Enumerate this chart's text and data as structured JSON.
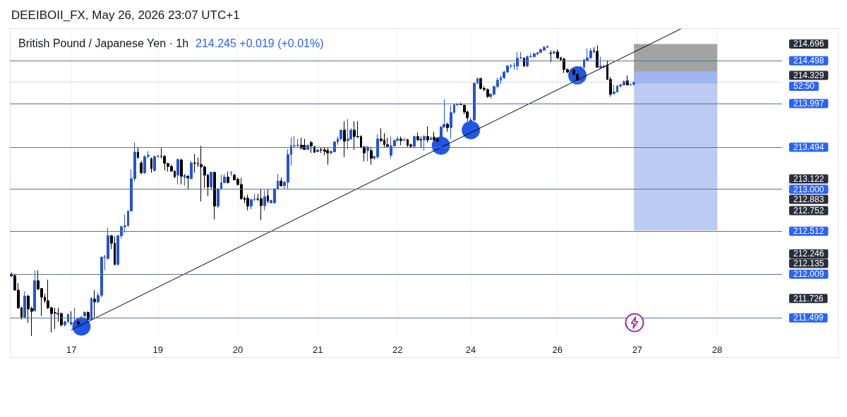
{
  "chart_data": {
    "type": "candlestick",
    "title": "British Pound / Japanese Yen · 1h",
    "subtitle": "214.245 +0.019 (+0.01%)",
    "annotations": [
      "DEEIBOII_FX, May 26, 2026 23:07 UTC+1",
      "52:50"
    ],
    "categories": [
      null,
      null,
      null,
      null,
      null,
      null,
      null,
      null,
      null,
      null,
      null,
      null,
      null,
      null,
      null,
      null,
      null,
      null,
      "17",
      null,
      null,
      null,
      null,
      null,
      null,
      null,
      null,
      null,
      null,
      null,
      null,
      null,
      null,
      null,
      null,
      null,
      null,
      null,
      null,
      null,
      null,
      null,
      null,
      null,
      "19",
      null,
      null,
      null,
      null,
      null,
      null,
      null,
      null,
      null,
      null,
      null,
      null,
      null,
      null,
      null,
      null,
      null,
      null,
      null,
      null,
      null,
      null,
      null,
      "20",
      null,
      null,
      null,
      null,
      null,
      null,
      null,
      null,
      null,
      null,
      null,
      null,
      null,
      null,
      null,
      null,
      null,
      null,
      null,
      null,
      null,
      null,
      null,
      "21",
      null,
      null,
      null,
      null,
      null,
      null,
      null,
      null,
      null,
      null,
      null,
      null,
      null,
      null,
      null,
      null,
      null,
      null,
      null,
      null,
      null,
      null,
      null,
      "22",
      null,
      null,
      null,
      null,
      null,
      null,
      null,
      null,
      null,
      null,
      null,
      null,
      null,
      null,
      null,
      null,
      null,
      null,
      null,
      null,
      null,
      "24",
      null,
      null,
      null,
      null,
      null,
      null,
      null,
      null,
      null,
      null,
      null,
      null,
      null,
      null,
      null,
      null,
      null,
      null,
      null,
      null,
      null,
      null,
      null,
      null,
      null,
      "26",
      null,
      null,
      null,
      null,
      null,
      null,
      null,
      null,
      null,
      null,
      null,
      null,
      null,
      null,
      null,
      null,
      null,
      null,
      null,
      null,
      null,
      null,
      null,
      "27",
      null,
      null,
      null,
      null,
      null,
      null,
      null,
      null,
      null,
      null,
      null,
      null,
      null,
      null,
      null,
      null,
      null,
      null,
      null,
      null,
      null,
      null,
      null,
      "28",
      null,
      null,
      null,
      null,
      null,
      null,
      null,
      null,
      null,
      null,
      null,
      null,
      null,
      null,
      null,
      null,
      null,
      null,
      null
    ],
    "ohlc": [
      [
        212.01,
        212.03,
        211.98,
        211.99
      ],
      [
        211.993,
        212.015,
        211.823,
        211.823
      ],
      [
        211.823,
        211.905,
        211.604,
        211.617
      ],
      [
        211.617,
        211.631,
        211.481,
        211.508
      ],
      [
        211.508,
        211.809,
        211.494,
        211.754
      ],
      [
        211.754,
        211.768,
        211.44,
        211.604
      ],
      [
        211.609,
        211.631,
        211.289,
        211.576
      ],
      [
        211.582,
        212.056,
        211.576,
        211.933
      ],
      [
        211.933,
        212.056,
        211.823,
        211.837
      ],
      [
        211.842,
        211.85,
        211.521,
        211.741
      ],
      [
        211.741,
        211.782,
        211.672,
        211.7
      ],
      [
        211.7,
        211.946,
        211.604,
        211.617
      ],
      [
        211.617,
        211.631,
        211.33,
        211.549
      ],
      [
        211.563,
        211.617,
        211.371,
        211.557
      ],
      [
        211.549,
        211.617,
        211.453,
        211.545
      ],
      [
        211.549,
        211.563,
        211.398,
        211.418
      ],
      [
        211.418,
        211.467,
        211.398,
        211.453
      ],
      [
        211.453,
        211.549,
        211.44,
        211.541
      ],
      [
        211.44,
        211.576,
        211.412,
        211.437
      ],
      [
        211.44,
        211.617,
        211.426,
        211.445
      ],
      [
        211.453,
        211.467,
        211.412,
        211.426
      ],
      [
        211.426,
        211.52,
        211.42,
        211.508
      ],
      [
        211.521,
        211.576,
        211.508,
        211.563
      ],
      [
        211.563,
        211.576,
        211.467,
        211.481
      ],
      [
        211.481,
        211.741,
        211.467,
        211.727
      ],
      [
        211.719,
        211.823,
        211.494,
        211.686
      ],
      [
        211.686,
        211.795,
        211.672,
        211.763
      ],
      [
        211.763,
        212.22,
        211.741,
        212.206
      ],
      [
        212.206,
        212.234,
        212.056,
        212.209
      ],
      [
        212.193,
        212.549,
        212.179,
        212.458
      ],
      [
        212.458,
        212.467,
        212.302,
        212.371
      ],
      [
        212.371,
        212.453,
        212.111,
        212.124
      ],
      [
        212.124,
        212.467,
        212.111,
        212.458
      ],
      [
        212.458,
        212.576,
        212.426,
        212.563
      ],
      [
        212.563,
        212.705,
        212.494,
        212.576
      ],
      [
        212.576,
        212.754,
        212.563,
        212.746
      ],
      [
        212.746,
        213.234,
        212.741,
        213.124
      ],
      [
        213.124,
        213.549,
        213.097,
        213.434
      ],
      [
        213.434,
        213.494,
        213.357,
        213.371
      ],
      [
        213.308,
        213.33,
        213.179,
        213.193
      ],
      [
        213.193,
        213.398,
        213.179,
        213.379
      ],
      [
        213.384,
        213.445,
        213.357,
        213.398
      ],
      [
        213.357,
        213.371,
        213.193,
        213.242
      ],
      [
        213.22,
        213.398,
        213.206,
        213.379
      ],
      [
        213.384,
        213.398,
        213.371,
        213.386
      ],
      [
        213.386,
        213.48,
        213.357,
        213.384
      ],
      [
        213.384,
        213.398,
        213.22,
        213.302
      ],
      [
        213.302,
        213.308,
        213.206,
        213.267
      ],
      [
        213.267,
        213.289,
        213.206,
        213.212
      ],
      [
        213.212,
        213.22,
        213.132,
        213.146
      ],
      [
        213.165,
        213.357,
        213.056,
        213.349
      ],
      [
        213.343,
        213.357,
        213.056,
        213.152
      ],
      [
        213.138,
        213.179,
        213.042,
        213.165
      ],
      [
        213.152,
        213.165,
        213.001,
        213.132
      ],
      [
        213.124,
        213.33,
        213.116,
        213.308
      ],
      [
        213.308,
        213.412,
        213.193,
        213.302
      ],
      [
        213.302,
        213.371,
        213.261,
        213.297
      ],
      [
        213.289,
        213.508,
        212.858,
        213.261
      ],
      [
        213.261,
        213.275,
        213.015,
        213.165
      ],
      [
        213.165,
        213.179,
        212.919,
        213.028
      ],
      [
        213.028,
        213.206,
        212.987,
        213.198
      ],
      [
        213.198,
        213.206,
        212.65,
        212.804
      ],
      [
        212.804,
        213.015,
        212.78,
        213.006
      ],
      [
        213.006,
        213.171,
        212.995,
        213.078
      ],
      [
        213.078,
        213.179,
        213.069,
        213.143
      ],
      [
        213.143,
        213.206,
        213.069,
        213.078
      ],
      [
        213.187,
        213.214,
        213.152,
        213.19
      ],
      [
        213.165,
        213.179,
        213.105,
        213.11
      ],
      [
        213.116,
        213.138,
        213.042,
        213.056
      ],
      [
        213.056,
        213.132,
        212.878,
        212.891
      ],
      [
        212.897,
        212.919,
        212.837,
        212.878
      ],
      [
        212.897,
        212.938,
        212.754,
        212.804
      ],
      [
        212.804,
        212.891,
        212.768,
        212.878
      ],
      [
        212.88,
        212.946,
        212.864,
        212.886
      ],
      [
        212.886,
        212.946,
        212.864,
        212.883
      ],
      [
        212.891,
        213.001,
        212.639,
        212.809
      ],
      [
        212.809,
        212.987,
        212.754,
        212.913
      ],
      [
        212.924,
        213.006,
        212.837,
        212.864
      ],
      [
        212.842,
        212.878,
        212.837,
        212.869
      ],
      [
        212.842,
        213.015,
        212.831,
        213.006
      ],
      [
        213.001,
        213.179,
        212.995,
        213.097
      ],
      [
        213.097,
        213.138,
        213.028,
        213.042
      ],
      [
        213.042,
        213.097,
        213.006,
        213.083
      ],
      [
        213.083,
        213.467,
        213.006,
        213.406
      ],
      [
        213.406,
        213.604,
        213.28,
        213.508
      ],
      [
        213.508,
        213.617,
        213.48,
        213.51
      ],
      [
        213.51,
        213.59,
        213.494,
        213.516
      ],
      [
        213.516,
        213.604,
        213.467,
        213.48
      ],
      [
        213.514,
        213.588,
        213.46,
        213.465
      ],
      [
        213.465,
        213.52,
        213.455,
        213.514
      ],
      [
        213.547,
        213.561,
        213.424,
        213.506
      ],
      [
        213.498,
        213.506,
        213.424,
        213.432
      ],
      [
        213.438,
        213.465,
        213.432,
        213.46
      ],
      [
        213.46,
        213.493,
        213.424,
        213.458
      ],
      [
        213.46,
        213.493,
        213.397,
        213.443
      ],
      [
        213.451,
        213.493,
        213.287,
        213.424
      ],
      [
        213.424,
        213.451,
        213.41,
        213.443
      ],
      [
        213.438,
        213.561,
        213.432,
        213.553
      ],
      [
        213.553,
        213.616,
        213.52,
        213.588
      ],
      [
        213.588,
        213.698,
        213.575,
        213.69
      ],
      [
        213.69,
        213.794,
        213.377,
        213.561
      ],
      [
        213.569,
        213.821,
        213.465,
        213.588
      ],
      [
        213.588,
        213.712,
        213.58,
        213.69
      ],
      [
        213.69,
        213.794,
        213.46,
        213.616
      ],
      [
        213.616,
        213.794,
        213.602,
        213.612
      ],
      [
        213.616,
        213.63,
        213.479,
        213.493
      ],
      [
        213.493,
        213.506,
        213.328,
        213.424
      ],
      [
        213.451,
        213.506,
        213.328,
        213.493
      ],
      [
        213.451,
        213.493,
        213.287,
        213.361
      ],
      [
        213.364,
        213.39,
        213.342,
        213.383
      ],
      [
        213.377,
        213.643,
        213.361,
        213.588
      ],
      [
        213.588,
        213.712,
        213.547,
        213.569
      ],
      [
        213.575,
        213.657,
        213.493,
        213.52
      ],
      [
        213.52,
        213.602,
        213.493,
        213.501
      ],
      [
        213.397,
        213.616,
        213.361,
        213.506
      ],
      [
        213.506,
        213.58,
        213.498,
        213.569
      ],
      [
        213.569,
        213.616,
        213.561,
        213.588
      ],
      [
        213.588,
        213.616,
        213.514,
        213.569
      ],
      [
        213.573,
        213.602,
        213.561,
        213.575
      ],
      [
        213.58,
        213.588,
        213.493,
        213.514
      ],
      [
        213.52,
        213.534,
        213.479,
        213.501
      ],
      [
        213.501,
        213.624,
        213.493,
        213.616
      ],
      [
        213.616,
        213.662,
        213.561,
        213.58
      ],
      [
        213.58,
        213.616,
        213.479,
        213.575
      ],
      [
        213.575,
        213.63,
        213.451,
        213.616
      ],
      [
        213.616,
        213.734,
        213.547,
        213.575
      ],
      [
        213.59,
        213.616,
        213.575,
        213.586
      ],
      [
        213.608,
        213.671,
        213.569,
        213.575
      ],
      [
        213.588,
        213.608,
        213.547,
        213.561
      ],
      [
        213.547,
        213.739,
        213.534,
        213.725
      ],
      [
        213.725,
        214.049,
        213.72,
        213.758
      ],
      [
        213.758,
        213.78,
        213.671,
        213.72
      ],
      [
        213.72,
        213.98,
        213.588,
        213.895
      ],
      [
        213.895,
        213.999,
        213.882,
        213.986
      ],
      [
        213.986,
        214.008,
        213.972,
        213.991
      ],
      [
        213.991,
        214.013,
        213.98,
        213.988
      ],
      [
        213.98,
        213.991,
        213.876,
        213.903
      ],
      [
        213.903,
        213.915,
        213.794,
        213.835
      ],
      [
        213.794,
        213.835,
        213.76,
        213.808
      ],
      [
        213.808,
        214.246,
        213.794,
        214.238
      ],
      [
        214.238,
        214.301,
        214.227,
        214.293
      ],
      [
        214.293,
        214.301,
        214.164,
        214.177
      ],
      [
        214.177,
        214.205,
        214.145,
        214.164
      ],
      [
        214.164,
        214.177,
        214.068,
        214.082
      ],
      [
        214.082,
        214.12,
        214.06,
        214.109
      ],
      [
        214.109,
        214.205,
        214.095,
        214.199
      ],
      [
        214.199,
        214.301,
        214.177,
        214.273
      ],
      [
        214.273,
        214.328,
        214.232,
        214.301
      ],
      [
        214.301,
        214.383,
        214.287,
        214.369
      ],
      [
        214.369,
        214.451,
        214.356,
        214.438
      ],
      [
        214.438,
        214.465,
        214.41,
        214.44
      ],
      [
        214.44,
        214.479,
        214.397,
        214.446
      ],
      [
        214.438,
        214.602,
        214.391,
        214.528
      ],
      [
        214.528,
        214.602,
        214.52,
        214.534
      ],
      [
        214.528,
        214.539,
        214.43,
        214.438
      ],
      [
        214.438,
        214.561,
        214.424,
        214.547
      ],
      [
        214.547,
        214.588,
        214.534,
        214.55
      ],
      [
        214.547,
        214.594,
        214.539,
        214.583
      ],
      [
        214.575,
        214.602,
        214.566,
        214.597
      ],
      [
        214.597,
        214.643,
        214.588,
        214.63
      ],
      [
        214.624,
        214.671,
        214.616,
        214.657
      ],
      [
        214.657,
        214.676,
        214.649,
        214.671
      ],
      [
        214.588,
        214.621,
        214.484,
        214.585
      ],
      [
        214.588,
        214.621,
        214.58,
        214.602
      ],
      [
        214.602,
        214.63,
        214.52,
        214.534
      ],
      [
        214.534,
        214.547,
        214.501,
        214.512
      ],
      [
        214.52,
        214.534,
        214.356,
        214.397
      ],
      [
        214.397,
        214.41,
        214.356,
        214.369
      ],
      [
        214.375,
        214.4,
        214.36,
        214.391
      ],
      [
        214.391,
        214.4,
        214.33,
        214.342
      ],
      [
        214.342,
        214.35,
        214.27,
        214.279
      ],
      [
        214.279,
        214.44,
        214.27,
        214.424
      ],
      [
        214.424,
        214.52,
        214.41,
        214.512
      ],
      [
        214.506,
        214.643,
        214.493,
        214.534
      ],
      [
        214.534,
        214.649,
        214.52,
        214.616
      ],
      [
        214.614,
        214.657,
        214.588,
        214.61
      ],
      [
        214.61,
        214.679,
        214.419,
        214.424
      ],
      [
        214.419,
        214.547,
        214.41,
        214.438
      ],
      [
        214.43,
        214.451,
        214.41,
        214.438
      ],
      [
        214.451,
        214.506,
        214.276,
        214.282
      ],
      [
        214.282,
        214.314,
        214.082,
        214.109
      ],
      [
        214.117,
        214.219,
        214.109,
        214.136
      ],
      [
        214.136,
        214.219,
        214.128,
        214.205
      ],
      [
        214.205,
        214.232,
        214.191,
        214.219
      ],
      [
        214.219,
        214.268,
        214.21,
        214.26
      ],
      [
        214.265,
        214.328,
        214.21,
        214.219
      ],
      [
        214.219,
        214.238,
        214.205,
        214.221
      ],
      [
        214.226,
        214.26,
        214.21,
        214.245
      ],
      null,
      null,
      null,
      null,
      null,
      null,
      null,
      null,
      null,
      null,
      null,
      null,
      null,
      null,
      null,
      null,
      null,
      null,
      null,
      null,
      null,
      null,
      null,
      null,
      null,
      null,
      null,
      null,
      null,
      null,
      null,
      null,
      null,
      null,
      null,
      null,
      null,
      null,
      null,
      null,
      null,
      null,
      null,
      null
    ],
    "colors": [
      "#000000",
      "#000000",
      "#000000",
      "#000000",
      "#2453d6",
      "#000000",
      "#000000",
      "#2453d6",
      "#000000",
      "#000000",
      "#000000",
      "#000000",
      "#000000",
      "#000000",
      "#000000",
      "#000000",
      "#2453d6",
      "#2453d6",
      "#000000",
      "#2453d6",
      "#000000",
      "#2453d6",
      "#2453d6",
      "#000000",
      "#2453d6",
      "#000000",
      "#2453d6",
      "#2453d6",
      "#2453d6",
      "#2453d6",
      "#000000",
      "#000000",
      "#2453d6",
      "#2453d6",
      "#2453d6",
      "#2453d6",
      "#2453d6",
      "#2453d6",
      "#000000",
      "#000000",
      "#2453d6",
      "#2453d6",
      "#000000",
      "#2453d6",
      "#2453d6",
      "#000000",
      "#000000",
      "#000000",
      "#000000",
      "#000000",
      "#2453d6",
      "#000000",
      "#2453d6",
      "#000000",
      "#2453d6",
      "#000000",
      "#000000",
      "#000000",
      "#000000",
      "#000000",
      "#2453d6",
      "#000000",
      "#2453d6",
      "#2453d6",
      "#2453d6",
      "#000000",
      "#2453d6",
      "#000000",
      "#000000",
      "#000000",
      "#000000",
      "#000000",
      "#2453d6",
      "#2453d6",
      "#000000",
      "#000000",
      "#2453d6",
      "#000000",
      "#2453d6",
      "#2453d6",
      "#2453d6",
      "#000000",
      "#2453d6",
      "#2453d6",
      "#2453d6",
      "#2453d6",
      "#2453d6",
      "#000000",
      "#000000",
      "#2453d6",
      "#000000",
      "#000000",
      "#2453d6",
      "#000000",
      "#000000",
      "#000000",
      "#2453d6",
      "#2453d6",
      "#2453d6",
      "#2453d6",
      "#000000",
      "#2453d6",
      "#2453d6",
      "#000000",
      "#000000",
      "#000000",
      "#000000",
      "#2453d6",
      "#000000",
      "#2453d6",
      "#2453d6",
      "#000000",
      "#000000",
      "#000000",
      "#2453d6",
      "#2453d6",
      "#2453d6",
      "#000000",
      "#2453d6",
      "#000000",
      "#000000",
      "#2453d6",
      "#000000",
      "#000000",
      "#2453d6",
      "#000000",
      "#000000",
      "#000000",
      "#000000",
      "#2453d6",
      "#2453d6",
      "#000000",
      "#2453d6",
      "#2453d6",
      "#2453d6",
      "#000000",
      "#000000",
      "#000000",
      "#2453d6",
      "#2453d6",
      "#2453d6",
      "#000000",
      "#000000",
      "#000000",
      "#2453d6",
      "#2453d6",
      "#2453d6",
      "#2453d6",
      "#2453d6",
      "#2453d6",
      "#2453d6",
      "#2453d6",
      "#2453d6",
      "#2453d6",
      "#000000",
      "#2453d6",
      "#2453d6",
      "#2453d6",
      "#2453d6",
      "#2453d6",
      "#2453d6",
      "#2453d6",
      "#000000",
      "#2453d6",
      "#000000",
      "#000000",
      "#000000",
      "#000000",
      "#2453d6",
      "#000000",
      "#000000",
      "#2453d6",
      "#2453d6",
      "#2453d6",
      "#2453d6",
      "#000000",
      "#000000",
      "#2453d6",
      "#2453d6",
      "#000000",
      "#000000",
      "#2453d6",
      "#2453d6",
      "#2453d6",
      "#2453d6",
      "#000000",
      "#2453d6",
      "#2453d6",
      null,
      null,
      null,
      null,
      null,
      null,
      null,
      null,
      null,
      null,
      null,
      null,
      null,
      null,
      null,
      null,
      null,
      null,
      null,
      null,
      null,
      null,
      null,
      null,
      null,
      null,
      null,
      null,
      null,
      null,
      null,
      null,
      null,
      null,
      null,
      null,
      null,
      null,
      null,
      null,
      null,
      null,
      null,
      null
    ],
    "ylim": [
      211.28,
      214.88
    ],
    "yticks": [
      214.696,
      214.329,
      213.122,
      212.883,
      212.752,
      212.246,
      212.135,
      211.726
    ],
    "grid": "x",
    "ref_lines": [
      {
        "axis": "y",
        "value": 214.498,
        "label": "214.498",
        "color": "#5b7394"
      },
      {
        "axis": "y",
        "value": 213.997,
        "label": "213.997",
        "color": "#5b7394"
      },
      {
        "axis": "y",
        "value": 213.494,
        "label": "213.494",
        "color": "#5b7394"
      },
      {
        "axis": "y",
        "value": 213,
        "label": "213.000",
        "color": "#5b7394"
      },
      {
        "axis": "y",
        "value": 212.512,
        "label": "212.512",
        "color": "#5b7394"
      },
      {
        "axis": "y",
        "value": 212.009,
        "label": "212.009",
        "color": "#5b7394"
      },
      {
        "axis": "y",
        "value": 211.499,
        "label": "211.499",
        "color": "#5b7394"
      },
      {
        "axis": "y",
        "value": 214.245,
        "color": "#b2b5be",
        "line_style": "dotted"
      }
    ],
    "bands": [
      {
        "axis": "y",
        "from": 214.36,
        "to": 214.696,
        "color": "#a3a3a3"
      },
      {
        "axis": "y",
        "from": 212.52,
        "to": 214.36,
        "color": "#bccbf3"
      },
      {
        "axis": "y",
        "from": 214.235,
        "to": 214.375,
        "color": "#9fb5f1"
      }
    ],
    "series": [
      {
        "type": "line",
        "color": "#000000",
        "values": [
          null,
          null,
          null,
          null,
          null,
          null,
          null,
          null,
          null,
          null,
          null,
          null,
          null,
          null,
          null,
          null,
          null,
          null,
          211.36,
          null,
          null,
          null,
          null,
          null,
          null,
          null,
          null,
          null,
          null,
          null,
          null,
          null,
          null,
          null,
          null,
          null,
          null,
          null,
          null,
          null,
          null,
          null,
          null,
          null,
          null,
          null,
          null,
          null,
          null,
          null,
          null,
          null,
          null,
          null,
          null,
          null,
          null,
          null,
          null,
          null,
          null,
          null,
          null,
          null,
          null,
          null,
          null,
          null,
          null,
          null,
          null,
          null,
          null,
          null,
          null,
          null,
          null,
          null,
          null,
          null,
          null,
          null,
          null,
          null,
          null,
          null,
          null,
          null,
          null,
          null,
          null,
          null,
          null,
          null,
          null,
          null,
          null,
          null,
          null,
          null,
          null,
          null,
          null,
          null,
          null,
          null,
          null,
          null,
          null,
          null,
          null,
          null,
          null,
          null,
          null,
          null,
          null,
          null,
          null,
          null,
          null,
          null,
          null,
          null,
          null,
          null,
          null,
          null,
          null,
          null,
          null,
          null,
          null,
          null,
          null,
          null,
          null,
          null,
          null,
          null,
          null,
          null,
          null,
          null,
          null,
          null,
          null,
          null,
          null,
          null,
          null,
          null,
          null,
          null,
          null,
          null,
          null,
          null,
          null,
          null,
          null,
          null,
          null,
          null,
          null,
          null,
          null,
          null,
          null,
          null,
          null,
          null,
          null,
          null,
          null,
          null,
          null,
          null,
          null,
          null,
          null,
          null,
          null,
          null,
          null,
          null,
          null,
          null,
          null,
          null,
          null,
          null,
          null,
          null,
          null,
          null,
          null,
          null,
          null,
          null,
          null,
          214.87,
          null,
          null,
          null,
          null,
          null,
          null,
          null,
          null,
          null,
          null,
          null,
          null,
          null,
          null,
          null,
          null,
          null,
          null,
          null,
          null,
          null,
          null,
          null,
          null,
          null,
          null,
          null,
          null,
          null,
          null
        ]
      },
      {
        "type": "scatter",
        "color": "#2157e6",
        "marker": "circle",
        "values": [
          null,
          null,
          null,
          null,
          null,
          null,
          null,
          null,
          null,
          null,
          null,
          null,
          null,
          null,
          null,
          null,
          null,
          null,
          null,
          null,
          null,
          211.4,
          null,
          null,
          null,
          null,
          null,
          null,
          null,
          null,
          null,
          null,
          null,
          null,
          null,
          null,
          null,
          null,
          null,
          null,
          null,
          null,
          null,
          null,
          null,
          null,
          null,
          null,
          null,
          null,
          null,
          null,
          null,
          null,
          null,
          null,
          null,
          null,
          null,
          null,
          null,
          null,
          null,
          null,
          null,
          null,
          null,
          null,
          null,
          null,
          null,
          null,
          null,
          null,
          null,
          null,
          null,
          null,
          null,
          null,
          null,
          null,
          null,
          null,
          null,
          null,
          null,
          null,
          null,
          null,
          null,
          null,
          null,
          null,
          null,
          null,
          null,
          null,
          null,
          null,
          null,
          null,
          null,
          null,
          null,
          null,
          null,
          null,
          null,
          null,
          null,
          null,
          null,
          null,
          null,
          null,
          null,
          null,
          null,
          null,
          null,
          null,
          null,
          null,
          null,
          null,
          null,
          null,
          null,
          213.51,
          null,
          null,
          null,
          null,
          null,
          null,
          null,
          null,
          213.69,
          null,
          null,
          null,
          null,
          null,
          null,
          null,
          null,
          null,
          null,
          null,
          null,
          null,
          null,
          null,
          null,
          null,
          null,
          null,
          null,
          null,
          null,
          null,
          null,
          null,
          null,
          null,
          null,
          null,
          null,
          null,
          214.33,
          null,
          null,
          null,
          null,
          null,
          null,
          null,
          null,
          null,
          null,
          null,
          null,
          null,
          null,
          null,
          null,
          null,
          null,
          null,
          null,
          null,
          null,
          null,
          null,
          null,
          null,
          null,
          null,
          null,
          null,
          null,
          null,
          null,
          null,
          null,
          null,
          null,
          null,
          null,
          null,
          null,
          null,
          null,
          null,
          null,
          null,
          null,
          null,
          null,
          null,
          null,
          null,
          null,
          null,
          null,
          null,
          null,
          null,
          null,
          null,
          null
        ]
      }
    ]
  }
}
